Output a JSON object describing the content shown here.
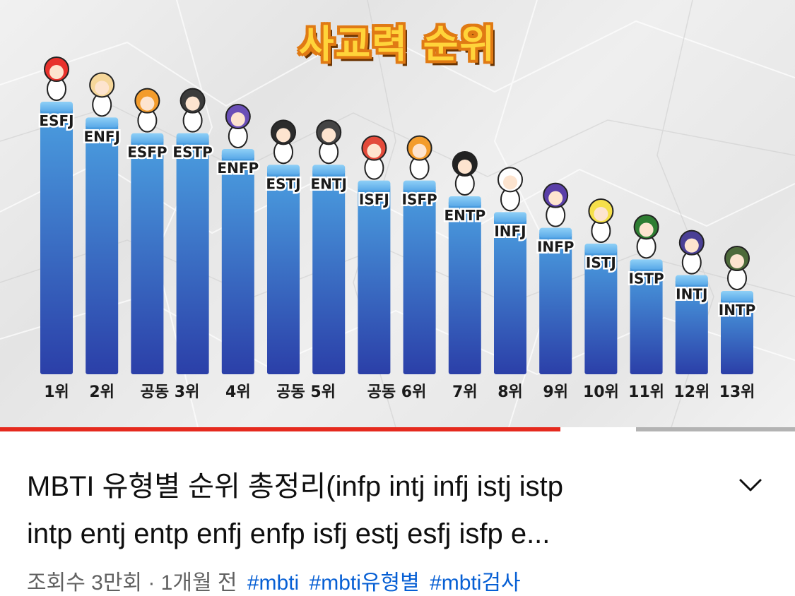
{
  "thumbnail": {
    "title": "사교력 순위",
    "chart_data": {
      "type": "bar",
      "title": "사교력 순위",
      "categories": [
        "ESFJ",
        "ENFJ",
        "ESFP",
        "ESTP",
        "ENFP",
        "ESTJ",
        "ENTJ",
        "ISFJ",
        "ISFP",
        "ENTP",
        "INFJ",
        "INFP",
        "ISTJ",
        "ISTP",
        "INTJ",
        "INTP"
      ],
      "rank_labels": [
        "1위",
        "2위",
        "공동 3위",
        "4위",
        "공동 5위",
        "공동 6위",
        "7위",
        "8위",
        "9위",
        "10위",
        "11위",
        "12위",
        "13위"
      ],
      "values": [
        13,
        12,
        11,
        11,
        10,
        9,
        9,
        8,
        8,
        7,
        6,
        5,
        4,
        3,
        2,
        1
      ],
      "ylim": [
        0,
        13
      ],
      "grid": false,
      "bar_color_top": "#4b9fe0",
      "bar_color_bottom": "#2b3fa8"
    }
  },
  "player": {
    "progress": 0.705,
    "buffered": 0.8,
    "played_color": "#e52a1e"
  },
  "video": {
    "title_line1": "MBTI 유형별 순위 총정리(infp intj infj istj istp",
    "title_line2": "intp entj entp enfj enfp isfj estj esfj isfp e...",
    "views": "조회수 3만회 · 1개월 전",
    "tags": [
      "#mbti",
      "#mbti유형별",
      "#mbti검사"
    ],
    "expand_icon": "chevron-down-icon"
  }
}
